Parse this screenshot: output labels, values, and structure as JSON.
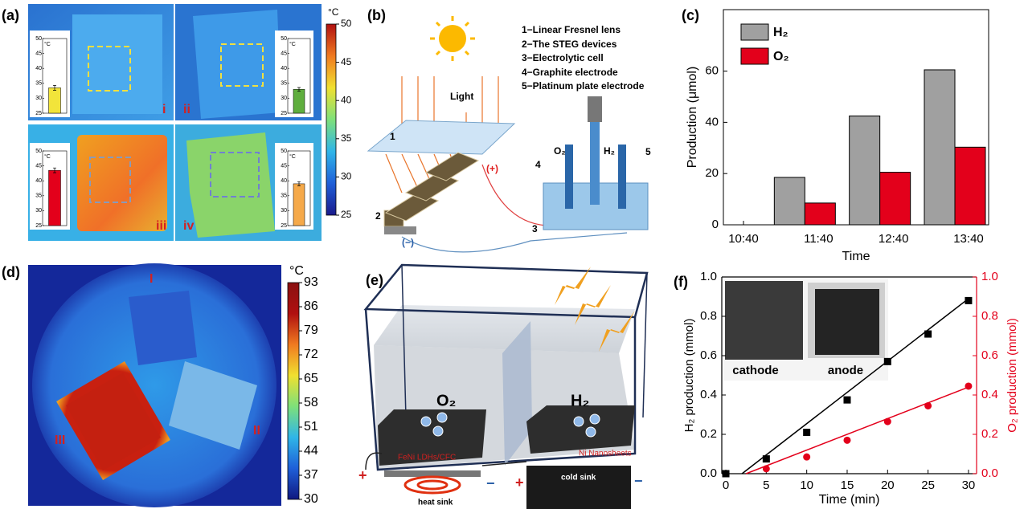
{
  "panel_labels": [
    "(a)",
    "(b)",
    "(c)",
    "(d)",
    "(e)",
    "(f)"
  ],
  "panel_a": {
    "image_labels": [
      "i",
      "ii",
      "iii",
      "iv"
    ]
  },
  "panel_b": {
    "legend": [
      "1−Linear Fresnel lens",
      "2−The STEG devices",
      "3−Electrolytic cell",
      "4−Graphite electrode",
      "5−Platinum plate electrode"
    ],
    "light": "Light",
    "parts": [
      "1",
      "2",
      "3",
      "4",
      "5"
    ],
    "gases": [
      "O₂",
      "H₂"
    ],
    "poles": [
      "(+)",
      "(−)"
    ]
  },
  "panel_d": {
    "region_labels": [
      "I",
      "II",
      "III"
    ]
  },
  "panel_e": {
    "gases": [
      "O₂",
      "H₂"
    ],
    "electrodes": [
      "FeNi LDHs/CFC",
      "Ni Nanosheets"
    ],
    "sinks": [
      "heat sink",
      "cold sink"
    ],
    "poles": [
      "+",
      "−",
      "+",
      "−"
    ]
  },
  "panel_f": {
    "photo_labels": [
      "cathode",
      "anode"
    ]
  },
  "chart_data": [
    {
      "type": "bar",
      "unit": "°C",
      "values": [
        33.5
      ],
      "errors": [
        0.8
      ],
      "color": "#f2e43a",
      "ylim": [
        25,
        50
      ],
      "yticks": [
        25,
        30,
        35,
        40,
        45,
        50
      ]
    },
    {
      "type": "bar",
      "unit": "°C",
      "values": [
        33
      ],
      "errors": [
        0.6
      ],
      "color": "#5fae3e",
      "ylim": [
        25,
        50
      ],
      "yticks": [
        25,
        30,
        35,
        40,
        45,
        50
      ]
    },
    {
      "type": "bar",
      "unit": "°C",
      "values": [
        43.5
      ],
      "errors": [
        0.8
      ],
      "color": "#e3001b",
      "ylim": [
        25,
        50
      ],
      "yticks": [
        25,
        30,
        35,
        40,
        45,
        50
      ]
    },
    {
      "type": "bar",
      "unit": "°C",
      "values": [
        39
      ],
      "errors": [
        0.7
      ],
      "color": "#f5a94a",
      "ylim": [
        25,
        50
      ],
      "yticks": [
        25,
        30,
        35,
        40,
        45,
        50
      ]
    },
    {
      "type": "colorbar",
      "unit": "°C",
      "ylim": [
        25,
        50
      ],
      "yticks": [
        25,
        30,
        35,
        40,
        45,
        50
      ],
      "colors": [
        "#1a1a8c",
        "#1f5fd8",
        "#2fb5e8",
        "#7ee07a",
        "#f0e030",
        "#f07a20",
        "#b01010"
      ]
    },
    {
      "type": "bar",
      "categories": [
        "10:40",
        "11:40",
        "12:40",
        "13:40"
      ],
      "series": [
        {
          "name": "H₂",
          "color": "#a0a0a0",
          "values": [
            null,
            18.5,
            42.5,
            60.5
          ]
        },
        {
          "name": "O₂",
          "color": "#e3001b",
          "values": [
            null,
            8.5,
            20.5,
            30.3
          ]
        }
      ],
      "ylim": [
        0,
        84
      ],
      "yticks": [
        0,
        20,
        40,
        60
      ],
      "x_label": "Time",
      "y_label": "Production (μmol)",
      "legend": "upper left"
    },
    {
      "type": "colorbar",
      "unit": "°C",
      "ylim": [
        30,
        93
      ],
      "yticks": [
        30,
        37,
        44,
        51,
        58,
        65,
        72,
        79,
        86,
        93
      ],
      "colors": [
        "#101880",
        "#1f5fd8",
        "#2fb5e8",
        "#7ee07a",
        "#f0e030",
        "#f07a20",
        "#b01010",
        "#8a1010"
      ]
    },
    {
      "type": "scatter",
      "x_label": "Time (min)",
      "y_label": "H₂ production (mmol)",
      "y2_label": "O₂ production (mmol)",
      "xlim": [
        -0.5,
        31
      ],
      "xticks": [
        0,
        5,
        10,
        15,
        20,
        25,
        30
      ],
      "ylim": [
        0,
        1
      ],
      "yticks": [
        {
          "value": 0,
          "label": "0.0"
        },
        0.2,
        0.4,
        0.6,
        0.8,
        {
          "value": 1,
          "label": "1.0"
        }
      ],
      "y2lim": [
        0,
        1
      ],
      "y2ticks": [
        {
          "value": 0,
          "label": "0.0"
        },
        0.2,
        0.4,
        0.6,
        0.8,
        {
          "value": 1,
          "label": "1.0"
        }
      ],
      "series": [
        {
          "color": "#000000",
          "marker": "square",
          "axis": "y",
          "x": [
            0,
            5,
            10,
            15,
            20,
            25,
            30
          ],
          "values": [
            0,
            0.075,
            0.21,
            0.375,
            0.57,
            0.71,
            0.88
          ],
          "fit": {
            "x": [
              2,
              30
            ],
            "values": [
              0,
              0.89
            ]
          }
        },
        {
          "color": "#e3001b",
          "marker": "circle",
          "axis": "y2",
          "x": [
            5,
            10,
            15,
            20,
            25,
            30
          ],
          "values": [
            0.025,
            0.085,
            0.17,
            0.265,
            0.345,
            0.445
          ],
          "fit": {
            "x": [
              2.5,
              30
            ],
            "values": [
              0,
              0.44
            ]
          }
        }
      ]
    }
  ]
}
